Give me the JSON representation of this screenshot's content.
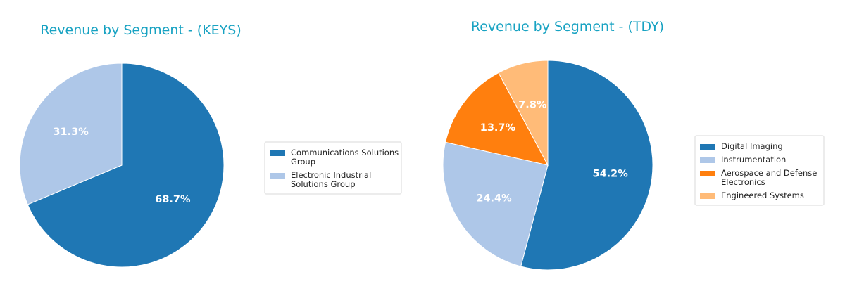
{
  "chart_data": [
    {
      "type": "pie",
      "title": "Revenue by Segment - (KEYS)",
      "legend_placement": "right",
      "slices": [
        {
          "label_lines": [
            "Communications Solutions",
            "Group"
          ],
          "value": 68.7,
          "pct_label": "68.7%",
          "color": "#1f77b4"
        },
        {
          "label_lines": [
            "Electronic Industrial",
            "Solutions Group"
          ],
          "value": 31.3,
          "pct_label": "31.3%",
          "color": "#aec7e8"
        }
      ]
    },
    {
      "type": "pie",
      "title": "Revenue by Segment - (TDY)",
      "legend_placement": "right",
      "slices": [
        {
          "label_lines": [
            "Digital Imaging"
          ],
          "value": 54.2,
          "pct_label": "54.2%",
          "color": "#1f77b4"
        },
        {
          "label_lines": [
            "Instrumentation"
          ],
          "value": 24.4,
          "pct_label": "24.4%",
          "color": "#aec7e8"
        },
        {
          "label_lines": [
            "Aerospace and Defense",
            "Electronics"
          ],
          "value": 13.7,
          "pct_label": "13.7%",
          "color": "#ff7f0e"
        },
        {
          "label_lines": [
            "Engineered Systems"
          ],
          "value": 7.8,
          "pct_label": "7.8%",
          "color": "#ffbb78"
        }
      ]
    }
  ]
}
